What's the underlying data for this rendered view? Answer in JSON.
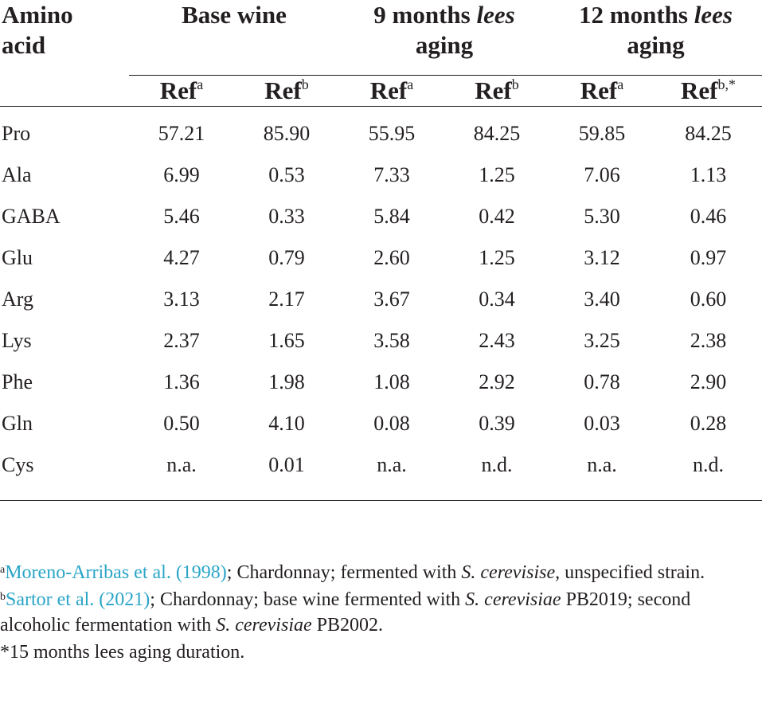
{
  "table": {
    "header": {
      "amino_acid": [
        "Amino",
        "acid"
      ],
      "groups": [
        {
          "line1_pre": "Base wine",
          "line1_italic": "",
          "line2": ""
        },
        {
          "line1_pre": "9 months ",
          "line1_italic": "lees",
          "line2": "aging"
        },
        {
          "line1_pre": "12 months ",
          "line1_italic": "lees",
          "line2": "aging"
        }
      ],
      "sub": [
        {
          "label": "Ref",
          "sup": "a"
        },
        {
          "label": "Ref",
          "sup": "b"
        },
        {
          "label": "Ref",
          "sup": "a"
        },
        {
          "label": "Ref",
          "sup": "b"
        },
        {
          "label": "Ref",
          "sup": "a"
        },
        {
          "label": "Ref",
          "sup": "b,*"
        }
      ]
    },
    "rows": [
      {
        "name": "Pro",
        "values": [
          "57.21",
          "85.90",
          "55.95",
          "84.25",
          "59.85",
          "84.25"
        ]
      },
      {
        "name": "Ala",
        "values": [
          "6.99",
          "0.53",
          "7.33",
          "1.25",
          "7.06",
          "1.13"
        ]
      },
      {
        "name": "GABA",
        "values": [
          "5.46",
          "0.33",
          "5.84",
          "0.42",
          "5.30",
          "0.46"
        ]
      },
      {
        "name": "Glu",
        "values": [
          "4.27",
          "0.79",
          "2.60",
          "1.25",
          "3.12",
          "0.97"
        ]
      },
      {
        "name": "Arg",
        "values": [
          "3.13",
          "2.17",
          "3.67",
          "0.34",
          "3.40",
          "0.60"
        ]
      },
      {
        "name": "Lys",
        "values": [
          "2.37",
          "1.65",
          "3.58",
          "2.43",
          "3.25",
          "2.38"
        ]
      },
      {
        "name": "Phe",
        "values": [
          "1.36",
          "1.98",
          "1.08",
          "2.92",
          "0.78",
          "2.90"
        ]
      },
      {
        "name": "Gln",
        "values": [
          "0.50",
          "4.10",
          "0.08",
          "0.39",
          "0.03",
          "0.28"
        ]
      },
      {
        "name": "Cys",
        "values": [
          "n.a.",
          "0.01",
          "n.a.",
          "n.d.",
          "n.a.",
          "n.d."
        ]
      }
    ]
  },
  "notes": {
    "a": {
      "mark": "a",
      "ref": "Moreno-Arribas et al. (1998)",
      "text1": "; Chardonnay; fermented with ",
      "italic1": "S. cerevisise",
      "text2": ", unspecified strain."
    },
    "b": {
      "mark": "b",
      "ref": "Sartor et al. (2021)",
      "text1": "; Chardonnay; base wine fermented with ",
      "italic1": "S. cerevisiae",
      "text2": " PB2019; second alcoholic fermentation with ",
      "italic2": "S. cerevisiae",
      "text3": " PB2002."
    },
    "star": "*15 months lees aging duration."
  },
  "colors": {
    "text": "#231f20",
    "link": "#2aa5c7"
  }
}
